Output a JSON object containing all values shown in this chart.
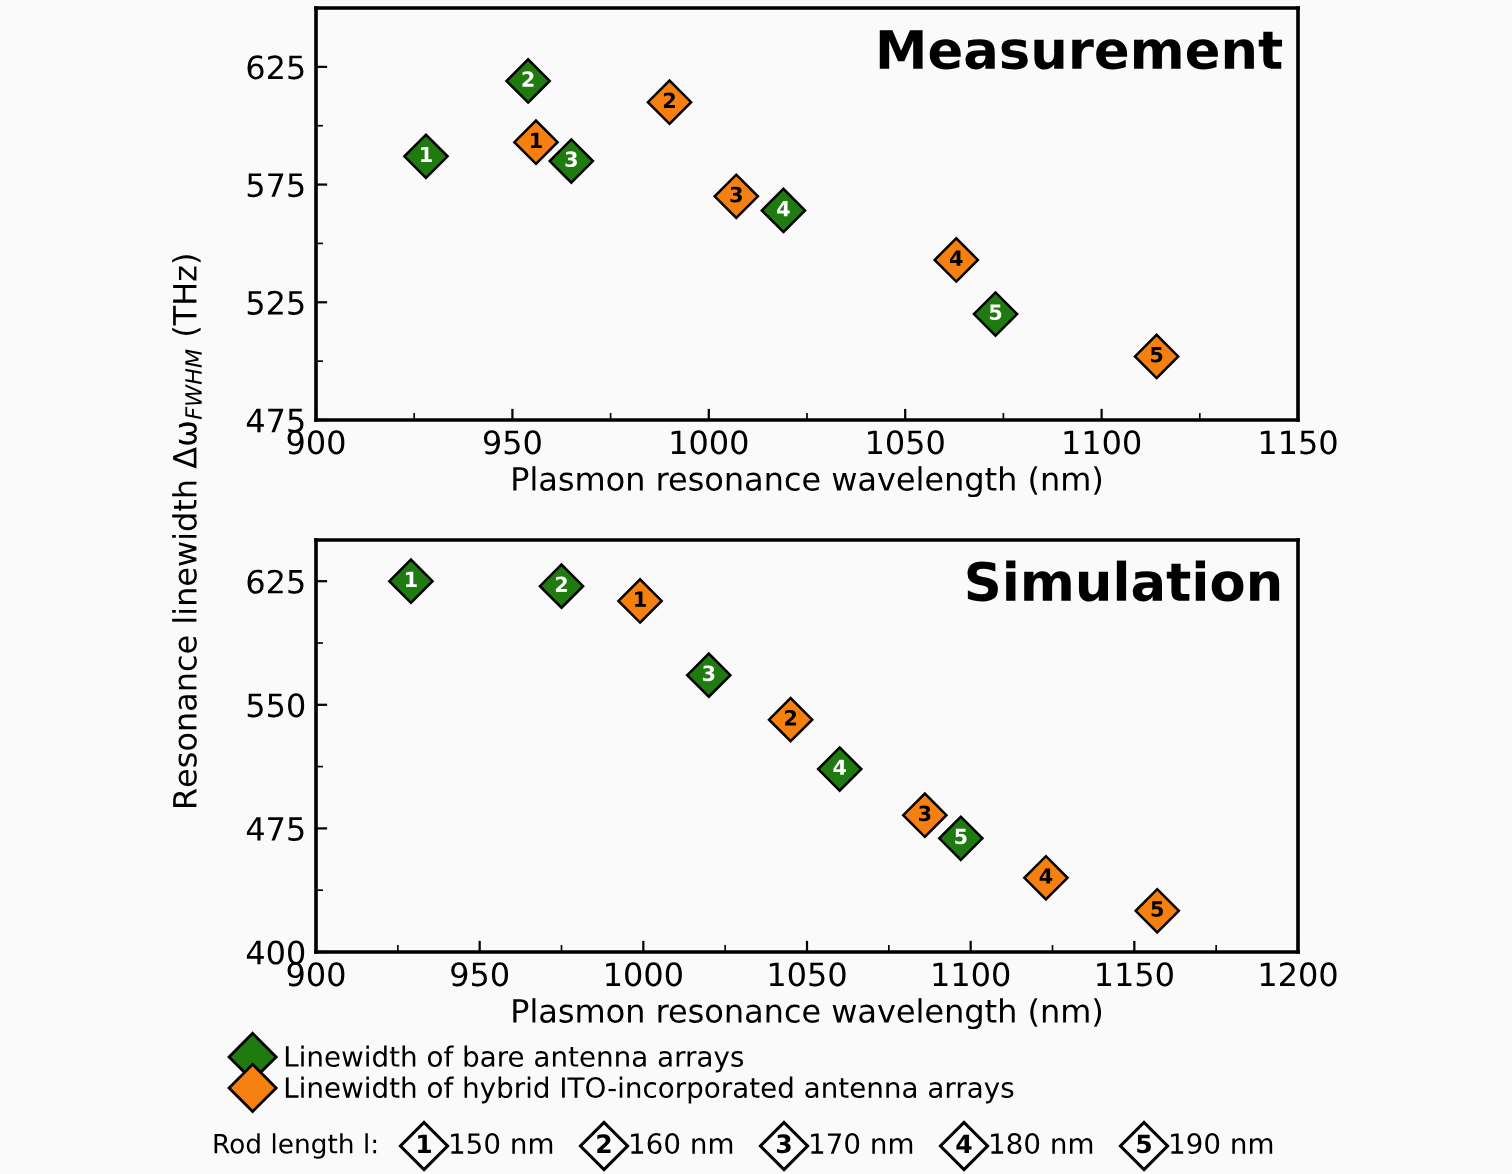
{
  "chart_data": [
    {
      "type": "scatter",
      "title": "Measurement",
      "ylabel": "Resonance linewidth Δω$_{FWHM}$ (THz)",
      "xlabel": "Plasmon resonance wavelength (nm)",
      "xlim": [
        900,
        1150
      ],
      "xticks": [
        900,
        950,
        1000,
        1050,
        1100,
        1150
      ],
      "ylim": [
        475,
        650
      ],
      "yticks": [
        475,
        525,
        575,
        625
      ],
      "marker": "diamond",
      "grid": false,
      "annotations": [
        {
          "text": "1",
          "x": 928,
          "y": 587
        },
        {
          "text": "2",
          "x": 954,
          "y": 619
        },
        {
          "text": "3",
          "x": 965,
          "y": 585
        },
        {
          "text": "4",
          "x": 1019,
          "y": 564
        },
        {
          "text": "5",
          "x": 1073,
          "y": 520
        },
        {
          "text": "1",
          "x": 956,
          "y": 593
        },
        {
          "text": "2",
          "x": 990,
          "y": 610
        },
        {
          "text": "3",
          "x": 1007,
          "y": 570
        },
        {
          "text": "4",
          "x": 1063,
          "y": 543
        },
        {
          "text": "5",
          "x": 1114,
          "y": 502
        }
      ],
      "series": [
        {
          "color": "#1f7a0f",
          "x": [
            928,
            954,
            965,
            1019,
            1073
          ],
          "values": [
            587,
            619,
            585,
            564,
            520
          ]
        },
        {
          "color": "#f5800f",
          "x": [
            956,
            990,
            1007,
            1063,
            1114
          ],
          "values": [
            593,
            610,
            570,
            543,
            502
          ]
        }
      ]
    },
    {
      "type": "scatter",
      "title": "Simulation",
      "xlabel": "Plasmon resonance wavelength (nm)",
      "xlim": [
        900,
        1200
      ],
      "xticks": [
        900,
        950,
        1000,
        1050,
        1100,
        1150,
        1200
      ],
      "ylim": [
        400,
        650
      ],
      "yticks": [
        400,
        475,
        550,
        625
      ],
      "marker": "diamond",
      "grid": false,
      "legend": "bottom",
      "annotations": [
        {
          "text": "1",
          "x": 929,
          "y": 625
        },
        {
          "text": "2",
          "x": 975,
          "y": 622
        },
        {
          "text": "3",
          "x": 1020,
          "y": 568
        },
        {
          "text": "4",
          "x": 1060,
          "y": 511
        },
        {
          "text": "5",
          "x": 1097,
          "y": 469
        },
        {
          "text": "1",
          "x": 999,
          "y": 613
        },
        {
          "text": "2",
          "x": 1045,
          "y": 541
        },
        {
          "text": "3",
          "x": 1086,
          "y": 483
        },
        {
          "text": "4",
          "x": 1123,
          "y": 445
        },
        {
          "text": "5",
          "x": 1157,
          "y": 425
        },
        "Rod length l:",
        "1",
        "150 nm",
        "2",
        "160 nm",
        "3",
        "170 nm",
        "4",
        "180 nm",
        "5",
        "190 nm"
      ],
      "series": [
        {
          "name": "Linewidth of bare antenna arrays",
          "color": "#1f7a0f",
          "x": [
            929,
            975,
            1020,
            1060,
            1097
          ],
          "values": [
            625,
            622,
            568,
            511,
            469
          ]
        },
        {
          "name": "Linewidth of hybrid ITO-incorporated antenna arrays",
          "color": "#f5800f",
          "x": [
            999,
            1045,
            1086,
            1123,
            1157
          ],
          "values": [
            613,
            541,
            483,
            445,
            425
          ]
        }
      ]
    }
  ]
}
